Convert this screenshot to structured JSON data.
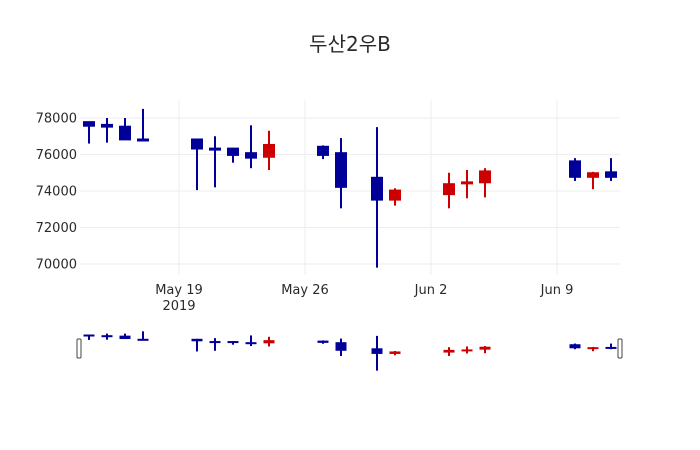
{
  "title": "두산2우B",
  "colors": {
    "increasing": "#cc0000",
    "decreasing": "#000099",
    "grid": "#eeeeee",
    "text": "#2a2a2a"
  },
  "chart_data": {
    "type": "candlestick",
    "title": "두산2우B",
    "xlabel": "",
    "ylabel": "",
    "ylim": [
      69500,
      78800
    ],
    "yticks": [
      70000,
      72000,
      74000,
      76000,
      78000
    ],
    "xticks": [
      {
        "date": "2019-05-19",
        "label": "May 19",
        "sublabel": "2019"
      },
      {
        "date": "2019-05-26",
        "label": "May 26",
        "sublabel": ""
      },
      {
        "date": "2019-06-02",
        "label": "Jun 2",
        "sublabel": ""
      },
      {
        "date": "2019-06-09",
        "label": "Jun 9",
        "sublabel": ""
      }
    ],
    "xrange": [
      "2019-05-13",
      "2019-06-13"
    ],
    "grid": true,
    "rangeslider": true,
    "candles": [
      {
        "date": "2019-05-14",
        "open": 77800,
        "high": 77800,
        "low": 76600,
        "close": 77550
      },
      {
        "date": "2019-05-15",
        "open": 77650,
        "high": 78000,
        "low": 76650,
        "close": 77500
      },
      {
        "date": "2019-05-16",
        "open": 77550,
        "high": 78000,
        "low": 76800,
        "close": 76800
      },
      {
        "date": "2019-05-17",
        "open": 76850,
        "high": 78500,
        "low": 76800,
        "close": 76800
      },
      {
        "date": "2019-05-20",
        "open": 76850,
        "high": 76850,
        "low": 74050,
        "close": 76300
      },
      {
        "date": "2019-05-21",
        "open": 76350,
        "high": 77000,
        "low": 74200,
        "close": 76300
      },
      {
        "date": "2019-05-22",
        "open": 76350,
        "high": 76350,
        "low": 75550,
        "close": 75950
      },
      {
        "date": "2019-05-23",
        "open": 76100,
        "high": 77600,
        "low": 75250,
        "close": 75800
      },
      {
        "date": "2019-05-24",
        "open": 75850,
        "high": 77300,
        "low": 75150,
        "close": 76550
      },
      {
        "date": "2019-05-27",
        "open": 76450,
        "high": 76500,
        "low": 75750,
        "close": 75950
      },
      {
        "date": "2019-05-28",
        "open": 76100,
        "high": 76900,
        "low": 73050,
        "close": 74200
      },
      {
        "date": "2019-05-30",
        "open": 74750,
        "high": 77500,
        "low": 69800,
        "close": 73500
      },
      {
        "date": "2019-05-31",
        "open": 73500,
        "high": 74150,
        "low": 73200,
        "close": 74050
      },
      {
        "date": "2019-06-03",
        "open": 73800,
        "high": 75000,
        "low": 73050,
        "close": 74400
      },
      {
        "date": "2019-06-04",
        "open": 74450,
        "high": 75150,
        "low": 73600,
        "close": 74500
      },
      {
        "date": "2019-06-05",
        "open": 74450,
        "high": 75250,
        "low": 73650,
        "close": 75100
      },
      {
        "date": "2019-06-10",
        "open": 75650,
        "high": 75800,
        "low": 74550,
        "close": 74750
      },
      {
        "date": "2019-06-11",
        "open": 74750,
        "high": 75050,
        "low": 74100,
        "close": 75000
      },
      {
        "date": "2019-06-12",
        "open": 75050,
        "high": 75800,
        "low": 74550,
        "close": 74750
      }
    ]
  }
}
